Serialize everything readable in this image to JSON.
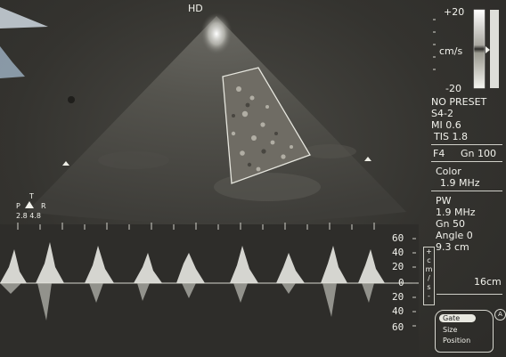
{
  "header": {
    "mode": "HD"
  },
  "color_scale": {
    "top": "+20",
    "unit": "cm/s",
    "bottom": "-20"
  },
  "params": {
    "preset": "NO PRESET",
    "probe": "S4-2",
    "mi": "MI 0.6",
    "tis": "TIS 1.8",
    "focus": "F4",
    "gain": "Gn 100"
  },
  "color_section": {
    "title": "Color",
    "freq": "1.9 MHz"
  },
  "pw_section": {
    "title": "PW",
    "freq": "1.9 MHz",
    "gain": "Gn 50",
    "angle": "Angle 0",
    "depth": "9.3 cm"
  },
  "sweep_speed": "16cm",
  "orientation": {
    "top": "T",
    "left": "P",
    "right": "R",
    "values": "2.8 4.8"
  },
  "doppler_scale": {
    "labels": [
      "60",
      "40",
      "20",
      "0",
      "20",
      "40",
      "60"
    ],
    "unit_vertical": [
      "+",
      "c",
      "m",
      "/",
      "s",
      "-"
    ]
  },
  "gate_menu": {
    "items": [
      "Gate",
      "Size",
      "Position"
    ],
    "selected": "Gate",
    "badge": "A"
  }
}
